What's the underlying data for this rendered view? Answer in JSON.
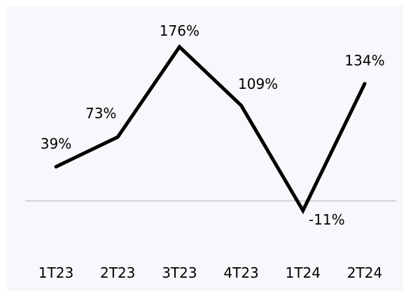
{
  "chart_data": {
    "type": "line",
    "title": "",
    "xlabel": "",
    "ylabel": "",
    "categories": [
      "1T23",
      "2T23",
      "3T23",
      "4T23",
      "1T24",
      "2T24"
    ],
    "series": [
      {
        "values": [
          39,
          73,
          176,
          109,
          -11,
          134
        ],
        "labels": [
          "39%",
          "73%",
          "176%",
          "109%",
          "-11%",
          "134%"
        ]
      }
    ],
    "ylim": [
      -11,
      176
    ],
    "zero_line": true,
    "grid": false,
    "legend": "none"
  },
  "colors": {
    "background": "#f8f8fc",
    "line": "#000000",
    "zero_line": "#c8c8cc",
    "text": "#000000"
  }
}
